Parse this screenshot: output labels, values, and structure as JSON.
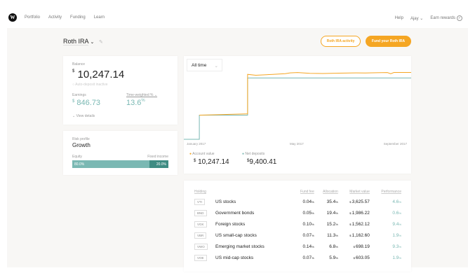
{
  "nav": {
    "logo": "W",
    "links": [
      "Portfolio",
      "Activity",
      "Funding",
      "Learn"
    ],
    "help": "Help",
    "user": "Ajay",
    "rewards": "Earn rewards"
  },
  "header": {
    "account": "Roth IRA",
    "activity_button": "Roth IRA activity",
    "fund_button": "Fund your Roth IRA"
  },
  "balance": {
    "label": "Balance",
    "currency": "$",
    "value": "10,247.14",
    "autodeposit": "Auto-deposit inactive",
    "earnings_label": "Earnings",
    "earnings": "846.73",
    "twr_label": "Time-weighted %",
    "twr": "13.6",
    "twr_unit": "%",
    "view_details": "View details"
  },
  "risk": {
    "label": "Risk profile",
    "value": "Growth",
    "equity_label": "Equity",
    "fixed_label": "Fixed income",
    "equity_pct": "80.0%",
    "fixed_pct": "20.0%",
    "equity_fraction": 0.8
  },
  "colors": {
    "accent": "#f5a623",
    "teal": "#7ab8b3",
    "dark_teal": "#3f8c83"
  },
  "chart": {
    "range": "All time",
    "legend": [
      {
        "name": "Account value",
        "value": "10,247.14",
        "color": "#f5a623"
      },
      {
        "name": "Net deposits",
        "value": "9,400.41",
        "color": "#7ab8b3"
      }
    ]
  },
  "chart_data": {
    "type": "line",
    "x_ticks": [
      "January 2017",
      "May 2017",
      "September 2017"
    ],
    "xlim": [
      "2016-12-22",
      "2017-09-26"
    ],
    "ylim": [
      0,
      11800
    ],
    "series": [
      {
        "name": "Account value",
        "color": "#f5a623",
        "points": [
          [
            "2017-01-10",
            3700
          ],
          [
            "2017-02-05",
            3790
          ],
          [
            "2017-03-10",
            3900
          ],
          [
            "2017-03-10",
            9950
          ],
          [
            "2017-03-20",
            9820
          ],
          [
            "2017-04-10",
            9960
          ],
          [
            "2017-04-25",
            10050
          ],
          [
            "2017-05-01",
            10180
          ],
          [
            "2017-05-10",
            10230
          ],
          [
            "2017-05-25",
            10100
          ],
          [
            "2017-06-10",
            10080
          ],
          [
            "2017-06-30",
            10140
          ],
          [
            "2017-07-20",
            10180
          ],
          [
            "2017-08-01",
            10160
          ],
          [
            "2017-08-15",
            10200
          ],
          [
            "2017-08-28",
            10230
          ],
          [
            "2017-09-01",
            10050
          ],
          [
            "2017-09-05",
            10240
          ],
          [
            "2017-09-26",
            10247.14
          ]
        ]
      },
      {
        "name": "Net deposits",
        "color": "#7ab8b3",
        "points": [
          [
            "2016-12-22",
            0
          ],
          [
            "2017-01-10",
            0
          ],
          [
            "2017-01-10",
            3700
          ],
          [
            "2017-03-10",
            3700
          ],
          [
            "2017-03-10",
            9400.41
          ],
          [
            "2017-09-26",
            9400.41
          ]
        ]
      }
    ]
  },
  "holdings": {
    "headers": [
      "Holding",
      "Fund fee",
      "Allocation",
      "Market value",
      "Performance"
    ],
    "rows": [
      {
        "ticker": "VTI",
        "name": "US stocks",
        "fee": "0.04",
        "alloc": "35.4",
        "value": "3,625.57",
        "perf": "4.6"
      },
      {
        "ticker": "BND",
        "name": "Government bonds",
        "fee": "0.05",
        "alloc": "19.4",
        "value": "1,986.22",
        "perf": "0.6"
      },
      {
        "ticker": "VGK",
        "name": "Foreign stocks",
        "fee": "0.10",
        "alloc": "15.2",
        "value": "1,562.12",
        "perf": "9.4"
      },
      {
        "ticker": "VBR",
        "name": "US small-cap stocks",
        "fee": "0.07",
        "alloc": "11.3",
        "value": "1,162.60",
        "perf": "1.9"
      },
      {
        "ticker": "VWO",
        "name": "Emerging market stocks",
        "fee": "0.14",
        "alloc": "6.8",
        "value": "698.19",
        "perf": "9.3"
      },
      {
        "ticker": "VOE",
        "name": "US mid-cap stocks",
        "fee": "0.07",
        "alloc": "5.9",
        "value": "603.05",
        "perf": "1.9"
      }
    ]
  }
}
